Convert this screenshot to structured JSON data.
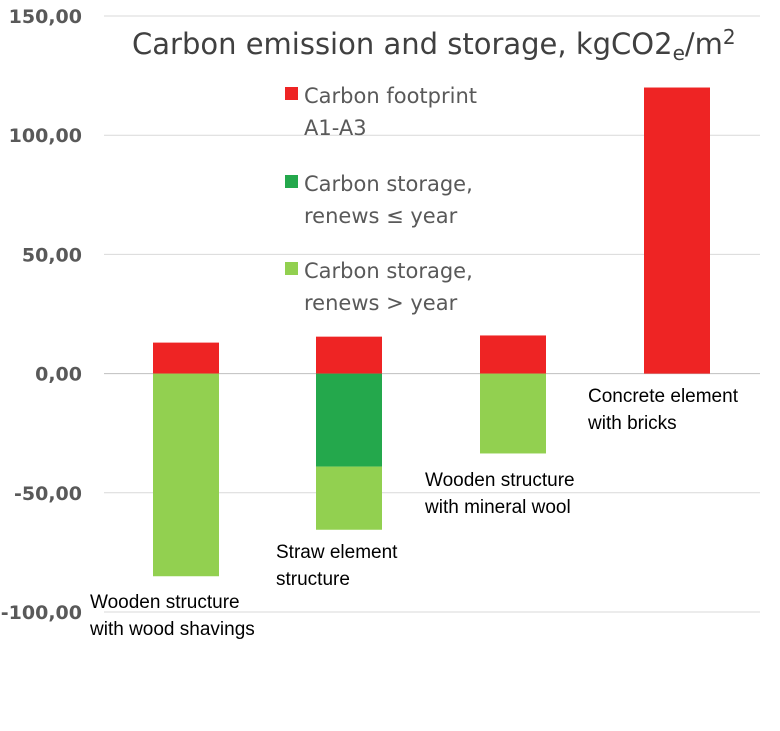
{
  "chart_data": {
    "type": "bar",
    "stacked": true,
    "title": "Carbon emission and storage, kgCO2e/m²",
    "ylim": [
      -100,
      150
    ],
    "yticks": [
      "150,00",
      "100,00",
      "50,00",
      "0,00",
      "-50,00",
      "-100,00"
    ],
    "ytick_values": [
      150,
      100,
      50,
      0,
      -50,
      -100
    ],
    "grid": true,
    "legend_position": "top-center",
    "categories": [
      [
        "Wooden structure",
        "with wood shavings"
      ],
      [
        "Straw element",
        "structure"
      ],
      [
        "Wooden structure",
        "with mineral wool"
      ],
      [
        "Concrete element",
        "with bricks"
      ]
    ],
    "series": [
      {
        "name": [
          "Carbon footprint",
          "A1-A3"
        ],
        "color": "#ee2424",
        "values": [
          13,
          15.5,
          16,
          120
        ]
      },
      {
        "name": [
          "Carbon storage,",
          "renews ≤ year"
        ],
        "color": "#24a84c",
        "values": [
          0,
          -39,
          0,
          0
        ]
      },
      {
        "name": [
          "Carbon storage,",
          "renews > year"
        ],
        "color": "#92d050",
        "values": [
          -85,
          -26.5,
          -33.5,
          0
        ]
      }
    ]
  }
}
